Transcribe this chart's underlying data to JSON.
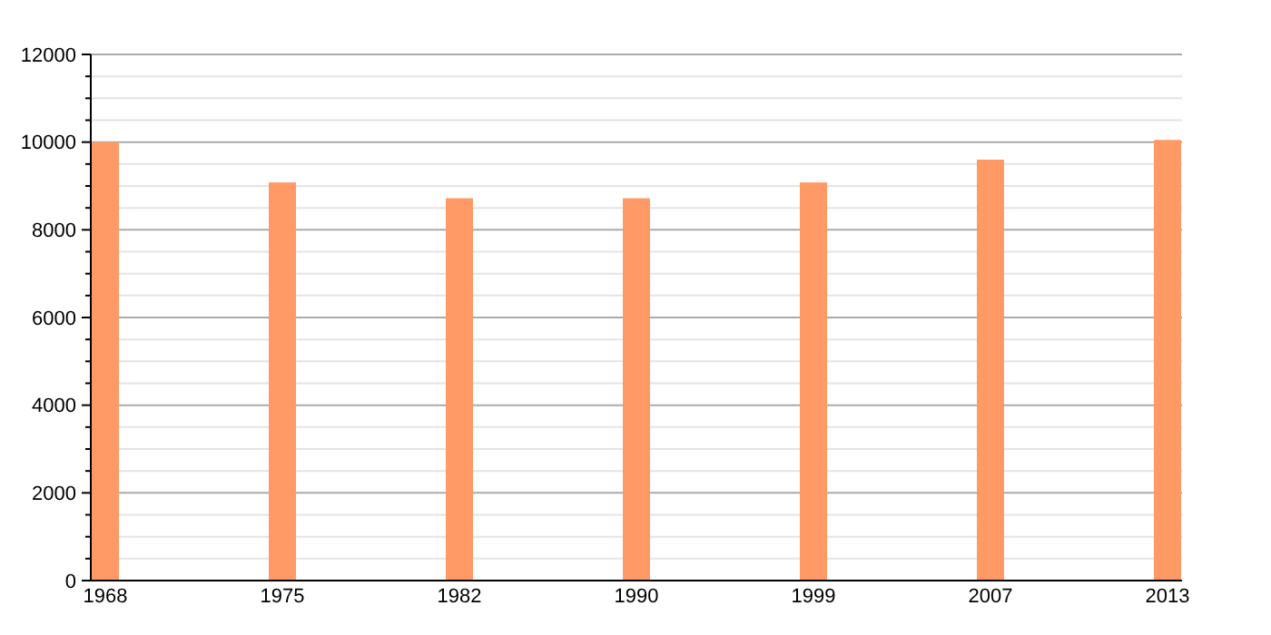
{
  "chart_data": {
    "type": "bar",
    "categories": [
      "1968",
      "1975",
      "1982",
      "1990",
      "1999",
      "2007",
      "2013"
    ],
    "values": [
      10000,
      9080,
      8720,
      8720,
      9080,
      9600,
      10050
    ],
    "color": "#ff9966",
    "ylim": [
      0,
      12000
    ],
    "yticks": [
      0,
      {
        "value": 500,
        "label": null
      },
      {
        "value": 1000,
        "label": null
      },
      {
        "value": 1500,
        "label": null
      },
      2000,
      {
        "value": 2500,
        "label": null
      },
      {
        "value": 3000,
        "label": null
      },
      {
        "value": 3500,
        "label": null
      },
      4000,
      {
        "value": 4500,
        "label": null
      },
      {
        "value": 5000,
        "label": null
      },
      {
        "value": 5500,
        "label": null
      },
      6000,
      {
        "value": 6500,
        "label": null
      },
      {
        "value": 7000,
        "label": null
      },
      {
        "value": 7500,
        "label": null
      },
      8000,
      {
        "value": 8500,
        "label": null
      },
      {
        "value": 9000,
        "label": null
      },
      {
        "value": 9500,
        "label": null
      },
      10000,
      {
        "value": 10500,
        "label": null
      },
      {
        "value": 11000,
        "label": null
      },
      {
        "value": 11500,
        "label": null
      },
      12000
    ],
    "grid": true
  }
}
